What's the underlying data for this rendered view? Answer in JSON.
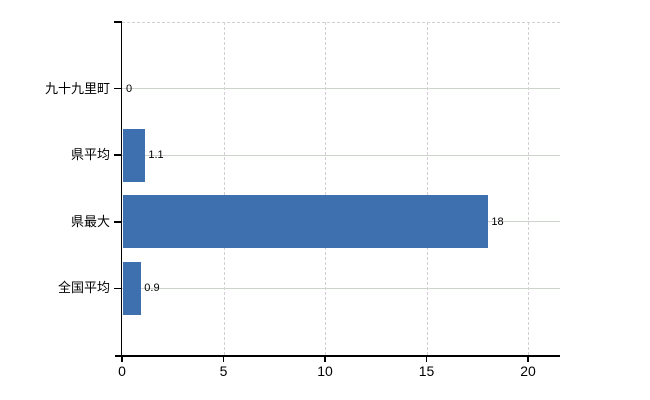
{
  "chart_data": {
    "type": "bar",
    "orientation": "horizontal",
    "title": "",
    "xlabel": "",
    "ylabel": "",
    "categories": [
      "九十九里町",
      "県平均",
      "県最大",
      "全国平均"
    ],
    "values": [
      0,
      1.1,
      18,
      0.9
    ],
    "value_labels": [
      "0",
      "1.1",
      "18",
      "0.9"
    ],
    "xlim": [
      0,
      20
    ],
    "x_ticks": [
      0,
      5,
      10,
      15,
      20
    ],
    "x_tick_labels": [
      "0",
      "5",
      "10",
      "15",
      "20"
    ],
    "grid": true,
    "legend": false,
    "colors": {
      "bar": "#3e6fae",
      "h_gridline": "#ccd4cb",
      "v_gridline": "#d3cfd3",
      "axis": "#000000",
      "text": "#000000",
      "background": "#ffffff"
    }
  }
}
